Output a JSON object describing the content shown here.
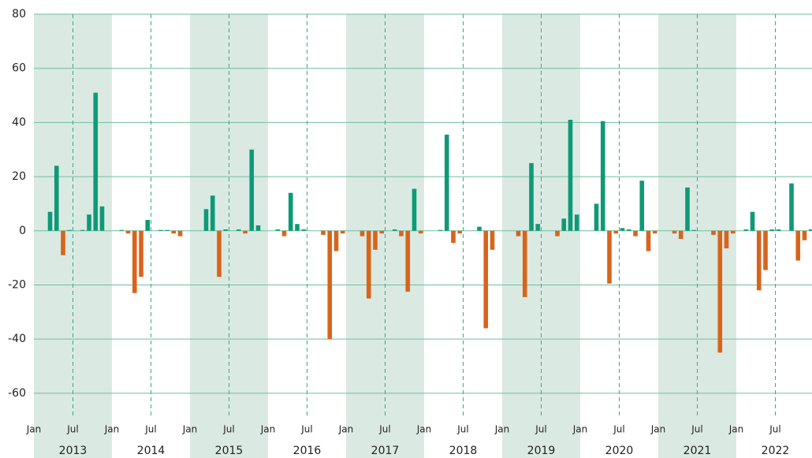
{
  "chart_data": {
    "type": "bar",
    "x": [
      "2013-01",
      "2013-02",
      "2013-03",
      "2013-04",
      "2013-05",
      "2013-06",
      "2013-07",
      "2013-08",
      "2013-09",
      "2013-10",
      "2013-11",
      "2013-12",
      "2014-01",
      "2014-02",
      "2014-03",
      "2014-04",
      "2014-05",
      "2014-06",
      "2014-07",
      "2014-08",
      "2014-09",
      "2014-10",
      "2014-11",
      "2014-12",
      "2015-01",
      "2015-02",
      "2015-03",
      "2015-04",
      "2015-05",
      "2015-06",
      "2015-07",
      "2015-08",
      "2015-09",
      "2015-10",
      "2015-11",
      "2015-12",
      "2016-01",
      "2016-02",
      "2016-03",
      "2016-04",
      "2016-05",
      "2016-06",
      "2016-07",
      "2016-08",
      "2016-09",
      "2016-10",
      "2016-11",
      "2016-12",
      "2017-01",
      "2017-02",
      "2017-03",
      "2017-04",
      "2017-05",
      "2017-06",
      "2017-07",
      "2017-08",
      "2017-09",
      "2017-10",
      "2017-11",
      "2017-12",
      "2018-01",
      "2018-02",
      "2018-03",
      "2018-04",
      "2018-05",
      "2018-06",
      "2018-07",
      "2018-08",
      "2018-09",
      "2018-10",
      "2018-11",
      "2018-12",
      "2019-01",
      "2019-02",
      "2019-03",
      "2019-04",
      "2019-05",
      "2019-06",
      "2019-07",
      "2019-08",
      "2019-09",
      "2019-10",
      "2019-11",
      "2019-12",
      "2020-01",
      "2020-02",
      "2020-03",
      "2020-04",
      "2020-05",
      "2020-06",
      "2020-07",
      "2020-08",
      "2020-09",
      "2020-10",
      "2020-11",
      "2020-12",
      "2021-01",
      "2021-02",
      "2021-03",
      "2021-04",
      "2021-05",
      "2021-06",
      "2021-07",
      "2021-08",
      "2021-09",
      "2021-10",
      "2021-11",
      "2021-12",
      "2022-01",
      "2022-02",
      "2022-03",
      "2022-04",
      "2022-05",
      "2022-06",
      "2022-07",
      "2022-08",
      "2022-09",
      "2022-10",
      "2022-11",
      "2022-12"
    ],
    "values": [
      0,
      0,
      7,
      24,
      -9,
      0.3,
      0,
      0.3,
      6,
      51,
      9,
      0,
      0,
      0.3,
      -1,
      -23,
      -17,
      4,
      0,
      0.3,
      0.3,
      -1,
      -2,
      0,
      0,
      0,
      8,
      13,
      -17,
      0.5,
      0,
      0.5,
      -1,
      30,
      2,
      0,
      0,
      0.5,
      -2,
      14,
      2.5,
      0.5,
      0,
      0,
      -1.5,
      -40,
      -7.5,
      -1,
      0,
      0,
      -2,
      -25,
      -7,
      -1,
      0,
      0.5,
      -2,
      -22.5,
      15.5,
      -1,
      0,
      0,
      0.3,
      35.5,
      -4.5,
      -1,
      0,
      0,
      1.5,
      -36,
      -7,
      0,
      0,
      0,
      -2,
      -24.5,
      25,
      2.5,
      0,
      0,
      -2,
      4.5,
      41,
      6,
      0,
      0,
      10,
      40.5,
      -19.5,
      -1,
      1,
      0.5,
      -2,
      18.5,
      -7.5,
      -1,
      0,
      0,
      -1,
      -3,
      16,
      0.3,
      0,
      0,
      -1.5,
      -45,
      -6.5,
      -1,
      0,
      0.5,
      7,
      -22,
      -14.5,
      0.5,
      0.5,
      0,
      17.5,
      -11,
      -3.5,
      0.5
    ],
    "colors": {
      "positive": "#0e9a76",
      "negative": "#d8641c"
    },
    "ylim": [
      -65,
      80
    ],
    "yticks": [
      -60,
      -40,
      -20,
      0,
      20,
      40,
      60,
      80
    ],
    "grid": true,
    "xticks": [
      {
        "value": "2013-01",
        "label": "Jan"
      },
      {
        "value": "2013-07",
        "label": "Jul"
      },
      {
        "value": "2014-01",
        "label": "Jan"
      },
      {
        "value": "2014-07",
        "label": "Jul"
      },
      {
        "value": "2015-01",
        "label": "Jan"
      },
      {
        "value": "2015-07",
        "label": "Jul"
      },
      {
        "value": "2016-01",
        "label": "Jan"
      },
      {
        "value": "2016-07",
        "label": "Jul"
      },
      {
        "value": "2017-01",
        "label": "Jan"
      },
      {
        "value": "2017-07",
        "label": "Jul"
      },
      {
        "value": "2018-01",
        "label": "Jan"
      },
      {
        "value": "2018-07",
        "label": "Jul"
      },
      {
        "value": "2019-01",
        "label": "Jan"
      },
      {
        "value": "2019-07",
        "label": "Jul"
      },
      {
        "value": "2020-01",
        "label": "Jan"
      },
      {
        "value": "2020-07",
        "label": "Jul"
      },
      {
        "value": "2021-01",
        "label": "Jan"
      },
      {
        "value": "2021-07",
        "label": "Jul"
      },
      {
        "value": "2022-01",
        "label": "Jan"
      },
      {
        "value": "2022-07",
        "label": "Jul"
      }
    ],
    "years": [
      "2013",
      "2014",
      "2015",
      "2016",
      "2017",
      "2018",
      "2019",
      "2020",
      "2021",
      "2022"
    ],
    "shaded_years": [
      "2013",
      "2015",
      "2017",
      "2019",
      "2021"
    ]
  }
}
